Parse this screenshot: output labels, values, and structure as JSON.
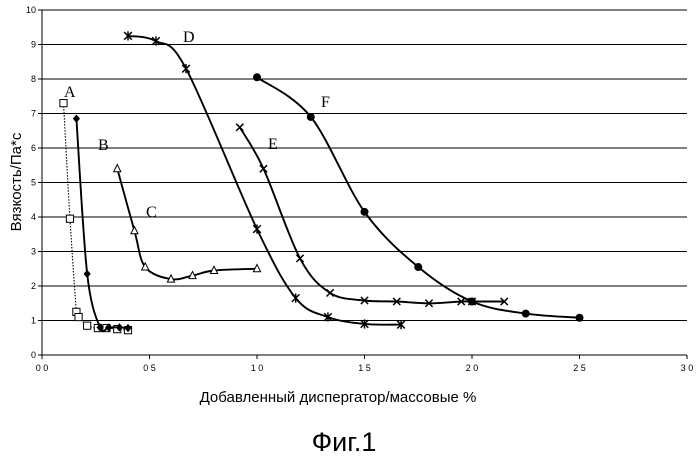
{
  "chart_data": {
    "type": "line",
    "xlabel": "Добавленный диспергатор/массовые %",
    "ylabel": "Вязкость/Па*с",
    "xlim": [
      0,
      30
    ],
    "ylim": [
      0,
      10
    ],
    "x_ticks": [
      "0 0",
      "0 5",
      "1 0",
      "1 5",
      "2 0",
      "2 5",
      "3 0"
    ],
    "y_ticks": [
      "0",
      "1",
      "2",
      "3",
      "4",
      "5",
      "6",
      "7",
      "8",
      "9",
      "10"
    ],
    "grid": "horizontal",
    "series": [
      {
        "name": "A",
        "marker": "square",
        "line": "dotted",
        "x": [
          1.0,
          1.3,
          1.6,
          1.7,
          2.1,
          2.6,
          3.0,
          3.5,
          4.0
        ],
        "y": [
          7.3,
          3.95,
          1.25,
          1.1,
          0.85,
          0.78,
          0.78,
          0.75,
          0.72
        ]
      },
      {
        "name": "",
        "marker": "diamond",
        "line": "solid",
        "x": [
          1.6,
          2.1,
          2.7,
          3.1,
          3.6,
          4.0
        ],
        "y": [
          6.85,
          2.35,
          0.8,
          0.8,
          0.8,
          0.78
        ]
      },
      {
        "name": "C",
        "marker": "triangle",
        "line": "solid",
        "x": [
          3.5,
          4.3,
          4.8,
          6.0,
          7.0,
          8.0,
          10.0
        ],
        "y": [
          5.4,
          3.6,
          2.55,
          2.2,
          2.3,
          2.45,
          2.5
        ]
      },
      {
        "name": "D",
        "marker": "star",
        "line": "solid",
        "x": [
          4.0,
          5.3,
          6.7,
          10.0,
          11.8,
          13.3,
          15.0,
          16.7
        ],
        "y": [
          9.25,
          9.1,
          8.3,
          3.65,
          1.65,
          1.1,
          0.9,
          0.88
        ]
      },
      {
        "name": "E",
        "marker": "x",
        "line": "solid",
        "x": [
          9.2,
          10.3,
          12.0,
          13.4,
          15.0,
          16.5,
          18.0,
          19.5,
          20.0,
          21.5
        ],
        "y": [
          6.6,
          5.4,
          2.8,
          1.8,
          1.58,
          1.55,
          1.5,
          1.55,
          1.55,
          1.55
        ]
      },
      {
        "name": "F",
        "marker": "circle",
        "line": "solid",
        "x": [
          10.0,
          12.5,
          15.0,
          17.5,
          20.0,
          22.5,
          25.0
        ],
        "y": [
          8.05,
          6.9,
          4.15,
          2.55,
          1.55,
          1.2,
          1.08
        ]
      }
    ],
    "annotations": [
      "A",
      "B",
      "C",
      "D",
      "E",
      "F"
    ],
    "caption": "Фиг.1"
  }
}
